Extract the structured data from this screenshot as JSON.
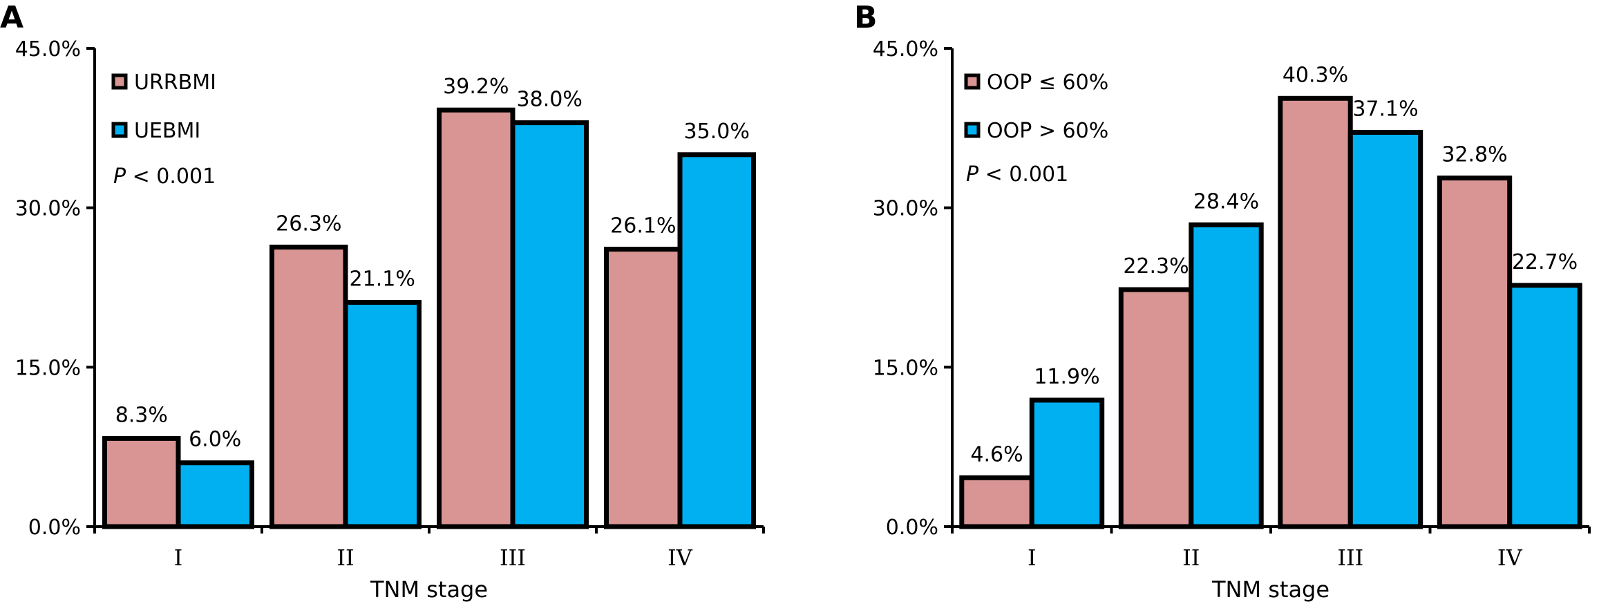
{
  "chart_data": [
    {
      "type": "bar",
      "panel": "A",
      "categories": [
        "I",
        "II",
        "III",
        "IV"
      ],
      "series": [
        {
          "name": "URRBMI",
          "color": "#d99594",
          "values": [
            8.3,
            26.3,
            39.2,
            26.1
          ],
          "labels": [
            "8.3%",
            "26.3%",
            "39.2%",
            "26.1%"
          ]
        },
        {
          "name": "UEBMI",
          "color": "#00b0f0",
          "values": [
            6.0,
            21.1,
            38.0,
            35.0
          ],
          "labels": [
            "6.0%",
            "21.1%",
            "38.0%",
            "35.0%"
          ]
        }
      ],
      "xlabel": "TNM stage",
      "ylabel": "",
      "ylim": [
        0,
        45
      ],
      "yticks": [
        "0.0%",
        "15.0%",
        "30.0%",
        "45.0%"
      ],
      "annotation": {
        "italic": "P",
        "rest": " < 0.001"
      },
      "legend_position": "top-left",
      "grid": false
    },
    {
      "type": "bar",
      "panel": "B",
      "categories": [
        "I",
        "II",
        "III",
        "IV"
      ],
      "series": [
        {
          "name": "OOP ≤ 60%",
          "color": "#d99594",
          "values": [
            4.6,
            22.3,
            40.3,
            32.8
          ],
          "labels": [
            "4.6%",
            "22.3%",
            "40.3%",
            "32.8%"
          ]
        },
        {
          "name": "OOP > 60%",
          "color": "#00b0f0",
          "values": [
            11.9,
            28.4,
            37.1,
            22.7
          ],
          "labels": [
            "11.9%",
            "28.4%",
            "37.1%",
            "22.7%"
          ]
        }
      ],
      "xlabel": "TNM stage",
      "ylabel": "",
      "ylim": [
        0,
        45
      ],
      "yticks": [
        "0.0%",
        "15.0%",
        "30.0%",
        "45.0%"
      ],
      "annotation": {
        "italic": "P",
        "rest": " < 0.001"
      },
      "legend_position": "top-left",
      "grid": false
    }
  ]
}
